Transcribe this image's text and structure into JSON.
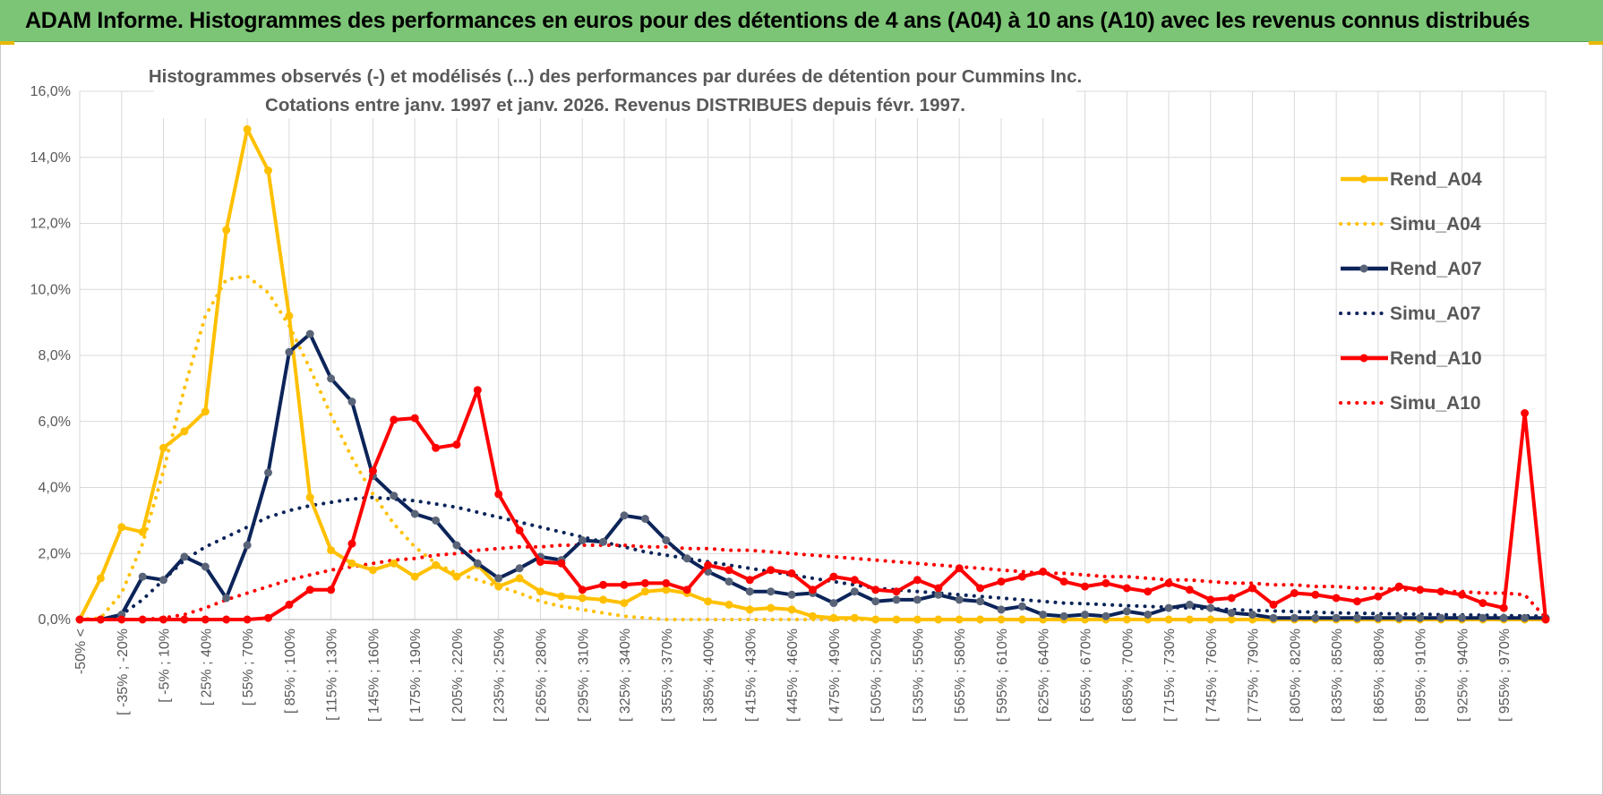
{
  "banner": {
    "title": "ADAM Informe. Histogrammes des performances en euros pour des détentions de 4 ans (A04) à 10 ans (A10) avec les revenus connus distribués"
  },
  "colors": {
    "banner_bg": "#7cc576",
    "corner_accent": "#e8b800",
    "grid": "#d9d9d9",
    "text": "#595959"
  },
  "chart_data": {
    "type": "line",
    "title_line1": "Histogrammes observés (-) et modélisés (...) des performances par durées de détention pour Cummins Inc.",
    "title_line2": "Cotations entre janv. 1997 et janv. 2026. Revenus DISTRIBUES depuis févr. 1997.",
    "ylim": [
      0,
      16
    ],
    "yticks": [
      "0,0%",
      "2,0%",
      "4,0%",
      "6,0%",
      "8,0%",
      "10,0%",
      "12,0%",
      "14,0%",
      "16,0%"
    ],
    "xtick_labels": [
      "-50% <",
      "[ -35% ; -20%",
      "[ -5% ; 10%",
      "[ 25% ; 40%",
      "[ 55% ; 70%",
      "[ 85% ; 100%",
      "[ 115% ; 130%",
      "[ 145% ; 160%",
      "[ 175% ; 190%",
      "[ 205% ; 220%",
      "[ 235% ; 250%",
      "[ 265% ; 280%",
      "[ 295% ; 310%",
      "[ 325% ; 340%",
      "[ 355% ; 370%",
      "[ 385% ; 400%",
      "[ 415% ; 430%",
      "[ 445% ; 460%",
      "[ 475% ; 490%",
      "[ 505% ; 520%",
      "[ 535% ; 550%",
      "[ 565% ; 580%",
      "[ 595% ; 610%",
      "[ 625% ; 640%",
      "[ 655% ; 670%",
      "[ 685% ; 700%",
      "[ 715% ; 730%",
      "[ 745% ; 760%",
      "[ 775% ; 790%",
      "[ 805% ; 820%",
      "[ 835% ; 850%",
      "[ 865% ; 880%",
      "[ 895% ; 910%",
      "[ 925% ; 940%",
      "[ 955% ; 970%"
    ],
    "category_count": 71,
    "series": [
      {
        "name": "Rend_A04",
        "style": "solid",
        "color": "#ffc000",
        "values": [
          0,
          1.25,
          2.8,
          2.65,
          5.2,
          5.7,
          6.3,
          11.8,
          14.85,
          13.6,
          9.2,
          3.7,
          2.1,
          1.7,
          1.5,
          1.7,
          1.3,
          1.65,
          1.3,
          1.65,
          1.0,
          1.25,
          0.85,
          0.7,
          0.65,
          0.6,
          0.5,
          0.85,
          0.9,
          0.8,
          0.55,
          0.45,
          0.3,
          0.35,
          0.3,
          0.1,
          0.05,
          0.05,
          0,
          0,
          0,
          0,
          0,
          0,
          0,
          0,
          0,
          0,
          0,
          0,
          0,
          0,
          0,
          0,
          0,
          0,
          0,
          0,
          0,
          0,
          0,
          0,
          0,
          0,
          0,
          0,
          0,
          0,
          0,
          0,
          0
        ]
      },
      {
        "name": "Simu_A04",
        "style": "dotted",
        "color": "#ffc000",
        "values": [
          0,
          0.05,
          0.8,
          2.3,
          4.5,
          7.0,
          9.2,
          10.3,
          10.4,
          9.9,
          8.9,
          7.6,
          6.2,
          4.9,
          3.8,
          2.9,
          2.2,
          1.7,
          1.4,
          1.2,
          1.0,
          0.8,
          0.55,
          0.4,
          0.3,
          0.2,
          0.1,
          0.05,
          0,
          0,
          0,
          0,
          0,
          0,
          0,
          0,
          0,
          0,
          0,
          0,
          0,
          0,
          0,
          0,
          0,
          0,
          0,
          0,
          0,
          0,
          0,
          0,
          0,
          0,
          0,
          0,
          0,
          0,
          0,
          0,
          0,
          0,
          0,
          0,
          0,
          0,
          0,
          0,
          0,
          0,
          0
        ]
      },
      {
        "name": "Rend_A07",
        "style": "solid",
        "color": "#0c2459",
        "values": [
          0,
          0,
          0.15,
          1.3,
          1.2,
          1.9,
          1.6,
          0.65,
          2.25,
          4.45,
          8.1,
          8.65,
          7.3,
          6.6,
          4.35,
          3.75,
          3.2,
          3.0,
          2.25,
          1.7,
          1.25,
          1.55,
          1.9,
          1.8,
          2.4,
          2.35,
          3.15,
          3.05,
          2.4,
          1.85,
          1.45,
          1.15,
          0.85,
          0.85,
          0.75,
          0.8,
          0.5,
          0.85,
          0.55,
          0.6,
          0.6,
          0.75,
          0.6,
          0.55,
          0.3,
          0.4,
          0.15,
          0.1,
          0.15,
          0.1,
          0.25,
          0.15,
          0.35,
          0.45,
          0.35,
          0.2,
          0.15,
          0.05,
          0.05,
          0.05,
          0.05,
          0.05,
          0.05,
          0.05,
          0.05,
          0.05,
          0.05,
          0.05,
          0.05,
          0.05,
          0.05
        ]
      },
      {
        "name": "Simu_A07",
        "style": "dotted",
        "color": "#0c2459",
        "values": [
          0,
          0,
          0.15,
          0.6,
          1.2,
          1.8,
          2.2,
          2.5,
          2.8,
          3.1,
          3.3,
          3.45,
          3.55,
          3.65,
          3.7,
          3.65,
          3.6,
          3.5,
          3.4,
          3.25,
          3.1,
          2.95,
          2.8,
          2.65,
          2.5,
          2.35,
          2.2,
          2.05,
          1.95,
          1.85,
          1.75,
          1.65,
          1.55,
          1.45,
          1.35,
          1.25,
          1.15,
          1.05,
          0.95,
          0.9,
          0.85,
          0.8,
          0.75,
          0.7,
          0.65,
          0.6,
          0.55,
          0.5,
          0.48,
          0.45,
          0.42,
          0.4,
          0.37,
          0.35,
          0.33,
          0.3,
          0.28,
          0.26,
          0.24,
          0.22,
          0.2,
          0.19,
          0.18,
          0.17,
          0.16,
          0.15,
          0.14,
          0.13,
          0.12,
          0.11,
          0.1
        ]
      },
      {
        "name": "Rend_A10",
        "style": "solid",
        "color": "#ff0000",
        "values": [
          0,
          0,
          0,
          0,
          0,
          0,
          0,
          0,
          0,
          0.05,
          0.45,
          0.9,
          0.9,
          2.3,
          4.5,
          6.05,
          6.1,
          5.2,
          5.3,
          6.95,
          3.8,
          2.7,
          1.75,
          1.7,
          0.9,
          1.05,
          1.05,
          1.1,
          1.1,
          0.9,
          1.65,
          1.5,
          1.2,
          1.5,
          1.4,
          0.9,
          1.3,
          1.2,
          0.9,
          0.85,
          1.2,
          0.95,
          1.55,
          0.95,
          1.15,
          1.3,
          1.45,
          1.15,
          1.0,
          1.1,
          0.95,
          0.85,
          1.1,
          0.9,
          0.6,
          0.65,
          0.95,
          0.45,
          0.8,
          0.75,
          0.65,
          0.55,
          0.7,
          1.0,
          0.9,
          0.85,
          0.75,
          0.5,
          0.35,
          6.25,
          0
        ]
      },
      {
        "name": "Simu_A10",
        "style": "dotted",
        "color": "#ff0000",
        "values": [
          0,
          0,
          0,
          0,
          0.05,
          0.15,
          0.35,
          0.6,
          0.8,
          1.0,
          1.2,
          1.35,
          1.5,
          1.6,
          1.7,
          1.8,
          1.85,
          1.95,
          2.0,
          2.1,
          2.15,
          2.2,
          2.2,
          2.25,
          2.25,
          2.25,
          2.25,
          2.2,
          2.2,
          2.15,
          2.15,
          2.1,
          2.1,
          2.05,
          2.0,
          1.95,
          1.9,
          1.85,
          1.8,
          1.75,
          1.7,
          1.65,
          1.6,
          1.55,
          1.5,
          1.45,
          1.4,
          1.4,
          1.35,
          1.3,
          1.3,
          1.25,
          1.2,
          1.2,
          1.15,
          1.1,
          1.1,
          1.05,
          1.05,
          1.0,
          1.0,
          0.95,
          0.95,
          0.9,
          0.9,
          0.85,
          0.85,
          0.8,
          0.8,
          0.75,
          0.05
        ]
      }
    ],
    "legend": [
      "Rend_A04",
      "Simu_A04",
      "Rend_A07",
      "Simu_A07",
      "Rend_A10",
      "Simu_A10"
    ],
    "legend_position": "right",
    "grid": true
  }
}
